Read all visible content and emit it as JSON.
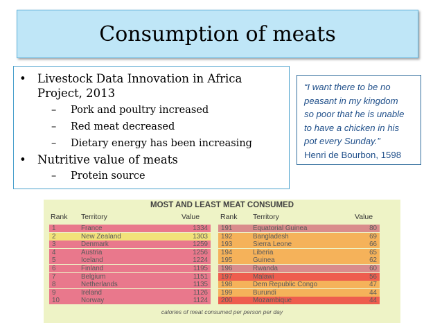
{
  "slide": {
    "title": "Consumption of meats",
    "bullets": [
      {
        "lines": [
          "Livestock Data Innovation in Africa",
          "Project, 2013"
        ],
        "sub": [
          "Pork and poultry increased",
          "Red meat decreased",
          "Dietary energy has been increasing"
        ]
      },
      {
        "lines": [
          "Nutritive value of meats"
        ],
        "sub": [
          "Protein source"
        ]
      }
    ],
    "bullet_symbol": "•",
    "dash_symbol": "–"
  },
  "quote": {
    "lines": [
      "“I want there to be no",
      "peasant in my kingdom",
      "so poor that he is unable",
      "to have a chicken in his",
      "pot every Sunday.”"
    ],
    "attribution": "Henri de Bourbon, 1598"
  },
  "table": {
    "title": "MOST AND LEAST MEAT CONSUMED",
    "headers": {
      "rank": "Rank",
      "territory": "Territory",
      "value": "Value"
    },
    "most": [
      {
        "rank": "1",
        "territory": "France",
        "value": "1334",
        "color": "#e9788c"
      },
      {
        "rank": "2",
        "territory": "New Zealand",
        "value": "1303",
        "color": "#f2e27a"
      },
      {
        "rank": "3",
        "territory": "Denmark",
        "value": "1259",
        "color": "#e9788c"
      },
      {
        "rank": "4",
        "territory": "Austria",
        "value": "1256",
        "color": "#e9788c"
      },
      {
        "rank": "5",
        "territory": "Iceland",
        "value": "1224",
        "color": "#e9788c"
      },
      {
        "rank": "6",
        "territory": "Finland",
        "value": "1195",
        "color": "#e9788c"
      },
      {
        "rank": "7",
        "territory": "Belgium",
        "value": "1151",
        "color": "#e9788c"
      },
      {
        "rank": "8",
        "territory": "Netherlands",
        "value": "1135",
        "color": "#e9788c"
      },
      {
        "rank": "9",
        "territory": "Ireland",
        "value": "1126",
        "color": "#e9788c"
      },
      {
        "rank": "10",
        "territory": "Norway",
        "value": "1124",
        "color": "#e9788c"
      }
    ],
    "least": [
      {
        "rank": "191",
        "territory": "Equatorial Guinea",
        "value": "80",
        "color": "#d98c8c"
      },
      {
        "rank": "192",
        "territory": "Bangladesh",
        "value": "69",
        "color": "#f5b25a"
      },
      {
        "rank": "193",
        "territory": "Sierra Leone",
        "value": "66",
        "color": "#f5b25a"
      },
      {
        "rank": "194",
        "territory": "Liberia",
        "value": "65",
        "color": "#f5b25a"
      },
      {
        "rank": "195",
        "territory": "Guinea",
        "value": "62",
        "color": "#f5b25a"
      },
      {
        "rank": "196",
        "territory": "Rwanda",
        "value": "60",
        "color": "#d98c8c"
      },
      {
        "rank": "197",
        "territory": "Malawi",
        "value": "56",
        "color": "#ee5d4e"
      },
      {
        "rank": "198",
        "territory": "Dem Republic Congo",
        "value": "47",
        "color": "#f5b25a"
      },
      {
        "rank": "199",
        "territory": "Burundi",
        "value": "44",
        "color": "#f5b25a"
      },
      {
        "rank": "200",
        "territory": "Mozambique",
        "value": "44",
        "color": "#ee5d4e"
      }
    ],
    "caption": "calories of meat consumed per person per day"
  }
}
